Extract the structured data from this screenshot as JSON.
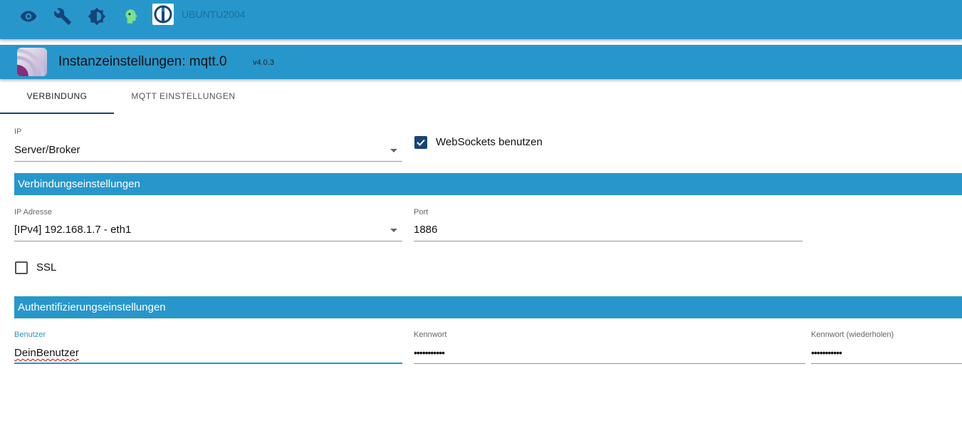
{
  "topbar": {
    "icons": [
      "eye-icon",
      "wrench-icon",
      "brightness-icon",
      "head-icon",
      "iobroker-logo"
    ],
    "host": "UBUNTU2004"
  },
  "header": {
    "title": "Instanzeinstellungen: mqtt.0",
    "version": "v4.0.3"
  },
  "tabs": [
    {
      "label": "VERBINDUNG",
      "active": true
    },
    {
      "label": "MQTT EINSTELLUNGEN",
      "active": false
    }
  ],
  "form": {
    "ip_label": "IP",
    "ip_value": "Server/Broker",
    "websockets_label": "WebSockets benutzen",
    "websockets_checked": true,
    "section_connection": "Verbindungseinstellungen",
    "ip_address_label": "IP Adresse",
    "ip_address_value": "[IPv4] 192.168.1.7 - eth1",
    "port_label": "Port",
    "port_value": "1886",
    "ssl_label": "SSL",
    "ssl_checked": false,
    "section_auth": "Authentifizierungseinstellungen",
    "user_label": "Benutzer",
    "user_value": "DeinBenutzer",
    "password_label": "Kennwort",
    "password_value": "•••••••••••",
    "password_repeat_label": "Kennwort (wiederholen)",
    "password_repeat_value": "•••••••••••"
  },
  "colors": {
    "primary": "#2797cb",
    "dark": "#164477",
    "checkbox": "#164477"
  }
}
